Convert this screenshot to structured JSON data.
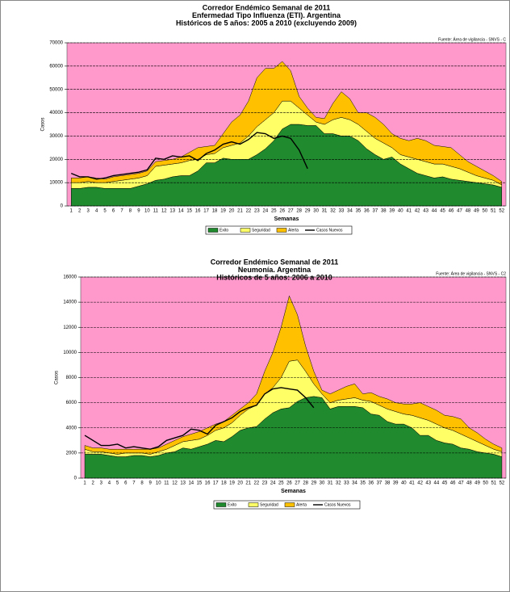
{
  "chart_data": [
    {
      "type": "area",
      "title_lines": [
        "Corredor Endémico Semanal de 2011",
        "Enfermedad Tipo Influenza (ETI).  Argentina",
        "Históricos de 5 años: 2005 a 2010 (excluyendo 2009)"
      ],
      "source": "Fuente: Área de vigilancia - SNVS - C",
      "x_label": "Semanas",
      "y_label": "Casos",
      "categories": [
        1,
        2,
        3,
        4,
        5,
        6,
        7,
        8,
        9,
        10,
        11,
        12,
        13,
        14,
        15,
        16,
        17,
        18,
        19,
        20,
        21,
        22,
        23,
        24,
        25,
        26,
        27,
        28,
        29,
        30,
        31,
        32,
        33,
        34,
        35,
        36,
        37,
        38,
        39,
        40,
        41,
        42,
        43,
        44,
        45,
        46,
        47,
        48,
        49,
        50,
        51,
        52
      ],
      "ylim": [
        0,
        70000
      ],
      "yticks": [
        0,
        10000,
        20000,
        30000,
        40000,
        50000,
        60000,
        70000
      ],
      "grid": true,
      "plot_background": "#ff99cc",
      "stacked": true,
      "series": [
        {
          "name": "Exito",
          "color": "#1f8a2e",
          "values": [
            7500,
            7500,
            8000,
            8000,
            7500,
            7500,
            7500,
            7500,
            8500,
            9500,
            11000,
            11500,
            12500,
            13000,
            13000,
            15000,
            18500,
            18500,
            20500,
            20000,
            20000,
            20000,
            22000,
            24500,
            28000,
            33000,
            35000,
            35000,
            34500,
            34500,
            31000,
            31000,
            30000,
            30000,
            28000,
            24500,
            22000,
            20000,
            21000,
            18000,
            16000,
            14000,
            13000,
            12000,
            12500,
            11500,
            11000,
            10500,
            10000,
            9500,
            9000,
            8000
          ]
        },
        {
          "name": "Seguridad",
          "color": "#ffff66",
          "values": [
            2500,
            2500,
            2500,
            2000,
            2500,
            3000,
            3500,
            4000,
            3500,
            3500,
            6000,
            6000,
            5500,
            5500,
            6500,
            5000,
            3500,
            4000,
            4500,
            6000,
            7000,
            10000,
            12000,
            12500,
            12000,
            12000,
            10000,
            7000,
            4500,
            1500,
            4000,
            6000,
            8000,
            7000,
            7000,
            7500,
            7000,
            7000,
            4000,
            4000,
            5000,
            6000,
            6000,
            6000,
            5500,
            5500,
            5000,
            4000,
            3000,
            2500,
            2000,
            1000
          ]
        },
        {
          "name": "Alerta",
          "color": "#ffc000",
          "values": [
            2000,
            2000,
            2000,
            2000,
            1500,
            2000,
            2000,
            2000,
            2000,
            2000,
            2000,
            2000,
            2000,
            2500,
            3500,
            5000,
            3500,
            3500,
            6000,
            10000,
            12000,
            15000,
            21000,
            22000,
            19000,
            17000,
            13000,
            5000,
            3000,
            2000,
            2500,
            7000,
            11000,
            9000,
            5000,
            8000,
            9000,
            8000,
            6000,
            7000,
            7000,
            9000,
            9000,
            8000,
            7500,
            8000,
            6000,
            4500,
            4000,
            3000,
            2000,
            1500
          ]
        },
        {
          "name": "Casos Nuevos",
          "color": "#000000",
          "type": "line",
          "values": [
            14000,
            12500,
            12500,
            11500,
            12000,
            13000,
            13500,
            14000,
            14500,
            15500,
            20500,
            20000,
            21500,
            21000,
            21500,
            19500,
            22500,
            24000,
            26500,
            27500,
            26500,
            28500,
            31500,
            31000,
            29000,
            30000,
            29000,
            24000,
            16000,
            null,
            null,
            null,
            null,
            null,
            null,
            null,
            null,
            null,
            null,
            null,
            null,
            null,
            null,
            null,
            null,
            null,
            null,
            null,
            null,
            null,
            null,
            null
          ]
        }
      ]
    },
    {
      "type": "area",
      "title_lines": [
        "Corredor Endémico Semanal de 2011",
        "Neumonía.  Argentina",
        "Históricos de 5 años: 2006 a 2010"
      ],
      "source": "Fuente: Área de vigilancia - SNVS - C2",
      "x_label": "Semanas",
      "y_label": "Casos",
      "categories": [
        1,
        2,
        3,
        4,
        5,
        6,
        7,
        8,
        9,
        10,
        11,
        12,
        13,
        14,
        15,
        16,
        17,
        18,
        19,
        20,
        21,
        22,
        23,
        24,
        25,
        26,
        27,
        28,
        29,
        30,
        31,
        32,
        33,
        34,
        35,
        36,
        37,
        38,
        39,
        40,
        41,
        42,
        43,
        44,
        45,
        46,
        47,
        48,
        49,
        50,
        51,
        52
      ],
      "ylim": [
        0,
        16000
      ],
      "yticks": [
        0,
        2000,
        4000,
        6000,
        8000,
        10000,
        12000,
        14000,
        16000
      ],
      "grid": true,
      "plot_background": "#ff99cc",
      "stacked": true,
      "series": [
        {
          "name": "Exito",
          "color": "#1f8a2e",
          "values": [
            1900,
            1900,
            1900,
            1800,
            1700,
            1700,
            1800,
            1800,
            1700,
            1800,
            2000,
            2100,
            2400,
            2300,
            2500,
            2700,
            3000,
            2900,
            3300,
            3800,
            4000,
            4100,
            4700,
            5200,
            5500,
            5600,
            6100,
            6400,
            6500,
            6400,
            5500,
            5700,
            5700,
            5700,
            5600,
            5100,
            5000,
            4500,
            4300,
            4300,
            4000,
            3400,
            3400,
            3000,
            2800,
            2700,
            2400,
            2300,
            2100,
            2000,
            1900,
            1700
          ]
        },
        {
          "name": "Seguridad",
          "color": "#ffff66",
          "values": [
            400,
            200,
            200,
            200,
            200,
            300,
            200,
            200,
            200,
            300,
            300,
            500,
            500,
            700,
            600,
            700,
            800,
            1100,
            1100,
            1200,
            1500,
            1700,
            2000,
            2000,
            2500,
            3700,
            3300,
            2100,
            1000,
            300,
            500,
            500,
            600,
            700,
            600,
            1000,
            800,
            1000,
            1000,
            800,
            1000,
            1400,
            1200,
            1300,
            1200,
            1100,
            1100,
            900,
            800,
            600,
            400,
            400
          ]
        },
        {
          "name": "Alerta",
          "color": "#ffc000",
          "values": [
            300,
            300,
            300,
            300,
            400,
            300,
            300,
            300,
            400,
            300,
            400,
            400,
            400,
            500,
            600,
            600,
            500,
            500,
            600,
            500,
            500,
            900,
            1800,
            2800,
            4000,
            5200,
            3600,
            2000,
            1000,
            300,
            700,
            800,
            1000,
            1100,
            500,
            700,
            700,
            800,
            700,
            800,
            900,
            1200,
            1100,
            1100,
            1000,
            1100,
            1200,
            800,
            700,
            500,
            400,
            300
          ]
        },
        {
          "name": "Casos Nuevos",
          "color": "#000000",
          "type": "line",
          "values": [
            3400,
            3000,
            2600,
            2600,
            2700,
            2400,
            2500,
            2400,
            2300,
            2500,
            3000,
            3200,
            3400,
            3900,
            3800,
            3500,
            4200,
            4500,
            4800,
            5300,
            5600,
            5800,
            6700,
            7100,
            7200,
            7100,
            7000,
            6400,
            5600,
            null,
            null,
            null,
            null,
            null,
            null,
            null,
            null,
            null,
            null,
            null,
            null,
            null,
            null,
            null,
            null,
            null,
            null,
            null,
            null,
            null,
            null,
            null
          ]
        }
      ]
    }
  ]
}
